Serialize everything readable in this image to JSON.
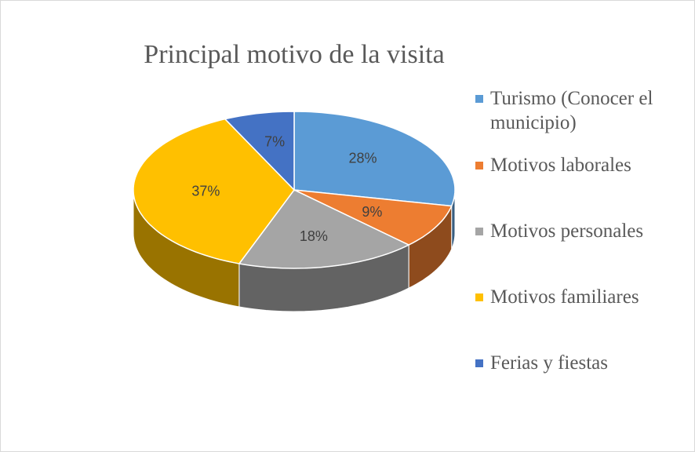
{
  "chart_data": {
    "type": "pie",
    "title": "Principal motivo de la visita",
    "categories": [
      "Turismo (Conocer el municipio)",
      "Motivos laborales",
      "Motivos personales",
      "Motivos familiares",
      "Ferias y fiestas"
    ],
    "values": [
      28,
      9,
      18,
      37,
      7
    ],
    "value_labels": [
      "28%",
      "9%",
      "18%",
      "37%",
      "7%"
    ],
    "colors": [
      "#5b9bd5",
      "#ed7d31",
      "#a5a5a5",
      "#ffc000",
      "#4472c4"
    ],
    "legend": "right"
  }
}
